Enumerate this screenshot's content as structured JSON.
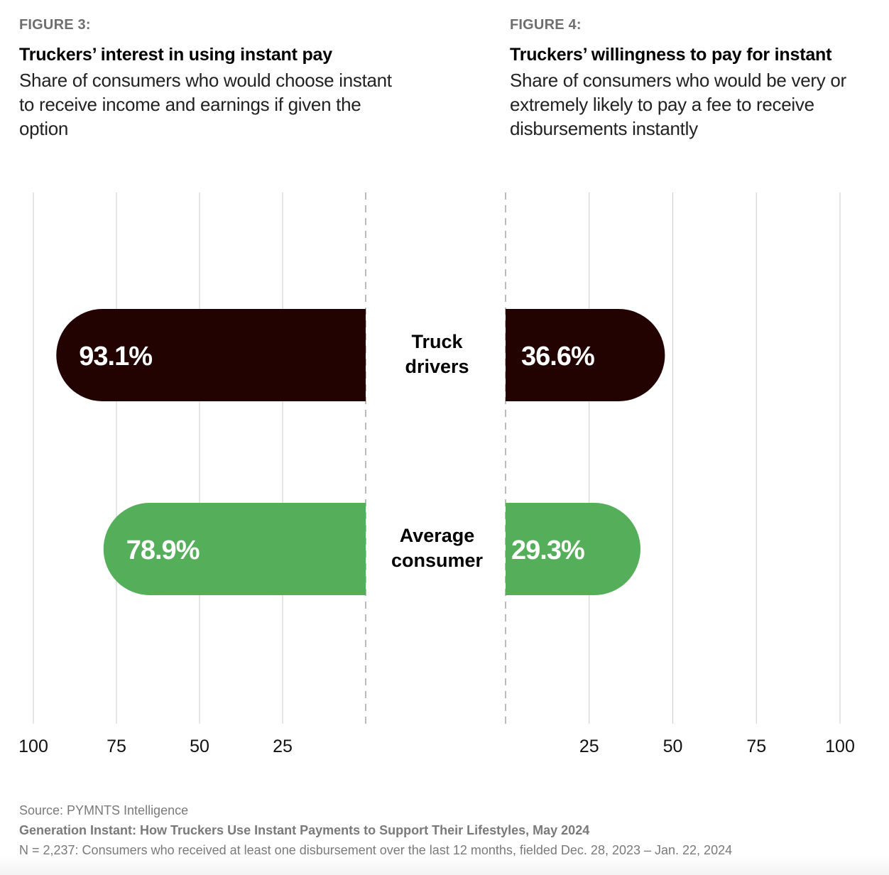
{
  "figures": [
    {
      "label": "FIGURE 3:",
      "title": "Truckers’ interest in using instant pay",
      "subtitle": "Share of consumers who would choose instant to receive income and earnings if given the option"
    },
    {
      "label": "FIGURE 4:",
      "title": "Truckers’ willingness to pay for instant",
      "subtitle": "Share of consumers who would be very or extremely likely to pay a fee to receive disbursements instantly"
    }
  ],
  "colors": {
    "truck_drivers": "#230202",
    "average_consumer": "#55ae59",
    "gridline": "#cccccc",
    "axis_dashed": "#bbbbbb"
  },
  "chart_data": [
    {
      "type": "bar",
      "orientation": "horizontal-mirrored-left",
      "title": "Truckers’ interest in using instant pay",
      "subtitle": "Share of consumers who would choose instant to receive income and earnings if given the option",
      "categories": [
        "Truck drivers",
        "Average consumer"
      ],
      "values": [
        93.1,
        78.9
      ],
      "value_labels": [
        "93.1%",
        "78.9%"
      ],
      "xlim": [
        0,
        100
      ],
      "ticks": [
        100,
        75,
        50,
        25
      ],
      "tick_labels": [
        "100",
        "75",
        "50",
        "25"
      ],
      "grid": true,
      "unit": "%"
    },
    {
      "type": "bar",
      "orientation": "horizontal",
      "title": "Truckers’ willingness to pay for instant",
      "subtitle": "Share of consumers who would be very or extremely likely to pay a fee to receive disbursements instantly",
      "categories": [
        "Truck drivers",
        "Average consumer"
      ],
      "values": [
        36.6,
        29.3
      ],
      "value_labels": [
        "36.6%",
        "29.3%"
      ],
      "xlim": [
        0,
        100
      ],
      "ticks": [
        25,
        50,
        75,
        100
      ],
      "tick_labels": [
        "25",
        "50",
        "75",
        "100"
      ],
      "grid": true,
      "unit": "%"
    }
  ],
  "category_labels": [
    [
      "Truck",
      "drivers"
    ],
    [
      "Average",
      "consumer"
    ]
  ],
  "footer": {
    "source": "Source: PYMNTS Intelligence",
    "report": "Generation Instant: How Truckers Use Instant Payments to Support Their Lifestyles, May 2024",
    "note": "N = 2,237: Consumers who received at least one disbursement over the last 12 months, fielded Dec. 28, 2023 – Jan. 22, 2024"
  }
}
